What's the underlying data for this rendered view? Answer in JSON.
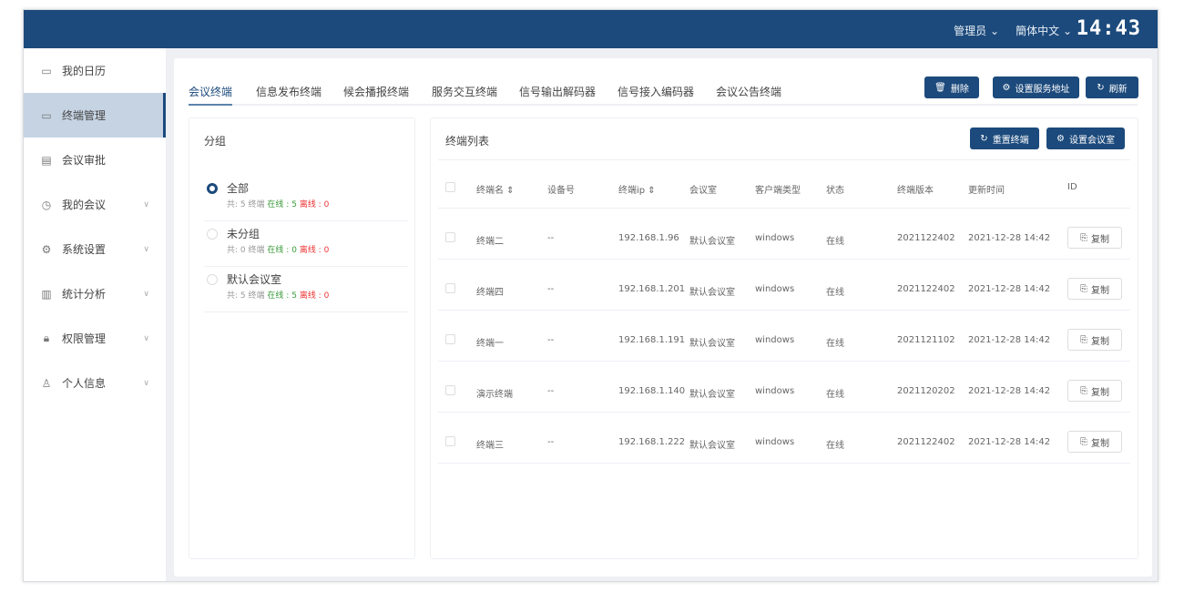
{
  "header": {
    "user": "管理员",
    "language": "簡体中文",
    "clock": "14:43"
  },
  "sidebar": {
    "items": [
      {
        "label": "我的日历",
        "icon": "calendar-icon",
        "glyph": "▭",
        "chevron": false
      },
      {
        "label": "终端管理",
        "icon": "monitor-icon",
        "glyph": "▭",
        "chevron": false,
        "active": true
      },
      {
        "label": "会议审批",
        "icon": "document-icon",
        "glyph": "▤",
        "chevron": false
      },
      {
        "label": "我的会议",
        "icon": "clock-icon",
        "glyph": "◷",
        "chevron": true
      },
      {
        "label": "系统设置",
        "icon": "settings-icon",
        "glyph": "⚙",
        "chevron": true
      },
      {
        "label": "统计分析",
        "icon": "bar-chart-icon",
        "glyph": "▥",
        "chevron": true
      },
      {
        "label": "权限管理",
        "icon": "lock-icon",
        "glyph": "🔒︎",
        "chevron": true
      },
      {
        "label": "个人信息",
        "icon": "user-icon",
        "glyph": "♙",
        "chevron": true
      }
    ]
  },
  "tabs": [
    "会议终端",
    "信息发布终端",
    "候会播报终端",
    "服务交互终端",
    "信号输出解码器",
    "信号接入编码器",
    "会议公告终端"
  ],
  "toolbar": {
    "delete": "删除",
    "set_server": "设置服务地址",
    "refresh": "刷新"
  },
  "groups": {
    "title": "分组",
    "total_prefix": "共:",
    "unit": "终端",
    "online_label": "在线 :",
    "offline_label": "离线 :",
    "items": [
      {
        "name": "全部",
        "total": "5",
        "online": "5",
        "offline": "0",
        "selected": true
      },
      {
        "name": "未分组",
        "total": "0",
        "online": "0",
        "offline": "0",
        "selected": false
      },
      {
        "name": "默认会议室",
        "total": "5",
        "online": "5",
        "offline": "0",
        "selected": false
      }
    ]
  },
  "list": {
    "title": "终端列表",
    "restart": "重置终端",
    "set_room": "设置会议室",
    "columns": [
      "终端名 ⇕",
      "设备号",
      "终端ip ⇕",
      "会议室",
      "客户端类型",
      "状态",
      "终端版本",
      "更新时间",
      "ID"
    ],
    "copy_label": "复制",
    "rows": [
      [
        "终端二",
        "--",
        "192.168.1.96",
        "默认会议室",
        "windows",
        "在线",
        "2021122402",
        "2021-12-28 14:42"
      ],
      [
        "终端四",
        "--",
        "192.168.1.201",
        "默认会议室",
        "windows",
        "在线",
        "2021122402",
        "2021-12-28 14:42"
      ],
      [
        "终端一",
        "--",
        "192.168.1.191",
        "默认会议室",
        "windows",
        "在线",
        "2021121102",
        "2021-12-28 14:42"
      ],
      [
        "演示终端",
        "--",
        "192.168.1.140",
        "默认会议室",
        "windows",
        "在线",
        "2021120202",
        "2021-12-28 14:42"
      ],
      [
        "终端三",
        "--",
        "192.168.1.222",
        "默认会议室",
        "windows",
        "在线",
        "2021122402",
        "2021-12-28 14:42"
      ]
    ]
  },
  "colors": {
    "primary": "#1c4a7c",
    "online": "#3a9a3a",
    "offline": "#e33333"
  }
}
